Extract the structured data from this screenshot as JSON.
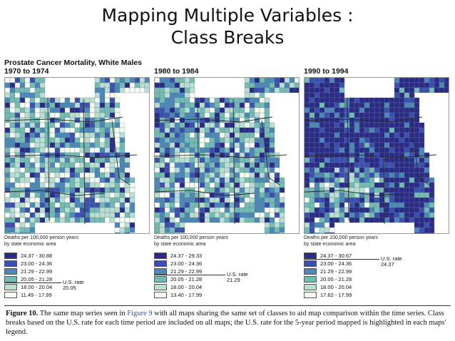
{
  "slide": {
    "title_line1": "Mapping Multiple Variables :",
    "title_line2": "Class Breaks"
  },
  "figure": {
    "title_line1": "Prostate Cancer Mortality, White Males",
    "legend_caption_line1": "Deaths per 100,000 person years",
    "legend_caption_line2": "by state economic area",
    "classes": [
      "24.37 - 30.88",
      "23.00 - 24.36",
      "21.29 - 22.99",
      "20.05 - 21.28",
      "18.00 - 20.04",
      "11.49 - 17.99"
    ],
    "class_colors": [
      "#2a2a88",
      "#3a4fb0",
      "#4b88b8",
      "#72bcb4",
      "#b8dfd2",
      "#f7fbf2"
    ],
    "maps": [
      {
        "period": "1970 to 1974",
        "classes": [
          "24.37 - 30.88",
          "23.00 - 24.36",
          "21.29 - 22.99",
          "20.05 - 21.28",
          "18.00 - 20.04",
          "11.49 - 17.99"
        ],
        "rate_label": "U.S. rate",
        "rate_value": "20.05"
      },
      {
        "period": "1980 to 1984",
        "classes": [
          "24.37 - 29.33",
          "23.00 - 24.36",
          "21.29 - 22.99",
          "20.05 - 21.28",
          "18.00 - 20.04",
          "13.40 - 17.99"
        ],
        "rate_label": "U.S. rate",
        "rate_value": "21.29"
      },
      {
        "period": "1990 to 1994",
        "classes": [
          "24.37 - 30.67",
          "23.00 - 24.36",
          "21.29 - 22.99",
          "20.05 - 21.28",
          "18.00 - 20.04",
          "17.62 - 17.99"
        ],
        "rate_label": "U.S. rate",
        "rate_value": "24.37"
      }
    ],
    "caption_label": "Figure 10.",
    "caption_text_a": "The same map series seen in",
    "caption_ref": "Figure 9",
    "caption_text_b": "with all maps sharing the same set of classes to aid map comparison within the time series. Class breaks based on the U.S. rate for each time period are included on all maps; the U.S. rate for the 5-year period mapped is highlighted in each maps' legend."
  }
}
